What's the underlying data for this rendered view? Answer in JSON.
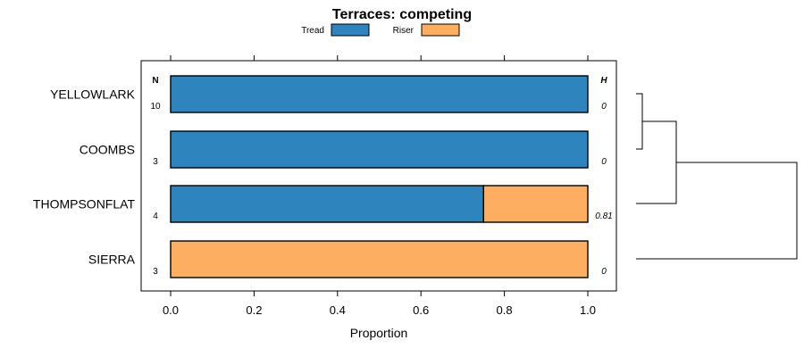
{
  "chart_data": {
    "type": "bar",
    "orientation": "horizontal",
    "stacked": true,
    "title": "Terraces: competing",
    "xlabel": "Proportion",
    "ylabel": "",
    "xlim": [
      0,
      1
    ],
    "xticks": [
      "0.0",
      "0.2",
      "0.4",
      "0.6",
      "0.8",
      "1.0"
    ],
    "xtick_values": [
      0,
      0.2,
      0.4,
      0.6,
      0.8,
      1.0
    ],
    "categories": [
      "YELLOWLARK",
      "COOMBS",
      "THOMPSONFLAT",
      "SIERRA"
    ],
    "series": [
      {
        "name": "Tread",
        "color": "#2e84bc",
        "values": [
          1.0,
          1.0,
          0.75,
          0.0
        ]
      },
      {
        "name": "Riser",
        "color": "#fdae61",
        "values": [
          0.0,
          0.0,
          0.25,
          1.0
        ]
      }
    ],
    "n_header": "N",
    "n_values": [
      "10",
      "3",
      "4",
      "3"
    ],
    "h_header": "H",
    "h_values": [
      "0",
      "0",
      "0.81",
      "0"
    ],
    "legend": [
      "Tread",
      "Riser"
    ],
    "legend_position": "top",
    "dendrogram": "right"
  }
}
